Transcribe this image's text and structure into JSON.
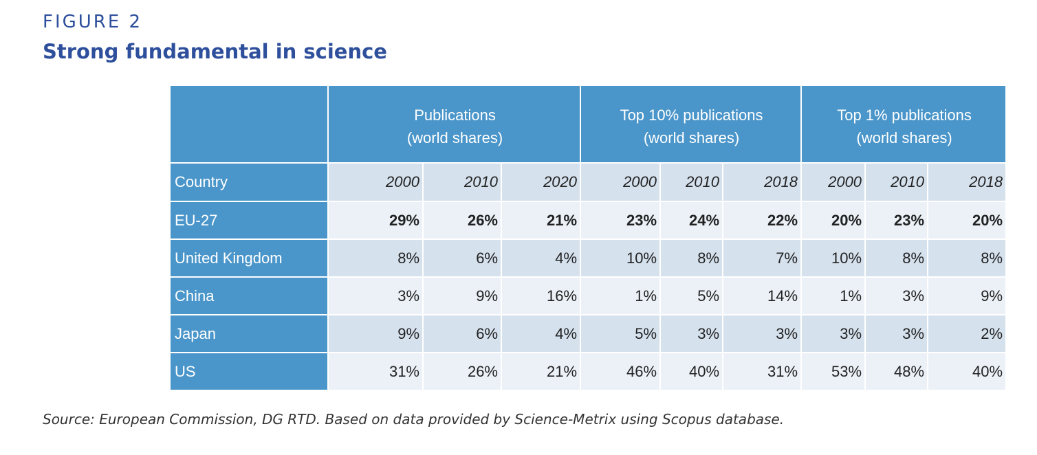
{
  "figure": {
    "label": "FIGURE 2",
    "title": "Strong fundamental in science"
  },
  "table": {
    "groups": [
      {
        "line1": "Publications",
        "line2": "(world shares)"
      },
      {
        "line1": "Top 10% publications",
        "line2": "(world shares)"
      },
      {
        "line1": "Top 1% publications",
        "line2": "(world shares)"
      }
    ],
    "country_header": "Country",
    "years": [
      "2000",
      "2010",
      "2020",
      "2000",
      "2010",
      "2018",
      "2000",
      "2010",
      "2018"
    ],
    "rows": [
      {
        "country": "EU-27",
        "values": [
          "29%",
          "26%",
          "21%",
          "23%",
          "24%",
          "22%",
          "20%",
          "23%",
          "20%"
        ]
      },
      {
        "country": "United Kingdom",
        "values": [
          "8%",
          "6%",
          "4%",
          "10%",
          "8%",
          "7%",
          "10%",
          "8%",
          "8%"
        ]
      },
      {
        "country": "China",
        "values": [
          "3%",
          "9%",
          "16%",
          "1%",
          "5%",
          "14%",
          "1%",
          "3%",
          "9%"
        ]
      },
      {
        "country": "Japan",
        "values": [
          "9%",
          "6%",
          "4%",
          "5%",
          "3%",
          "3%",
          "3%",
          "3%",
          "2%"
        ]
      },
      {
        "country": "US",
        "values": [
          "31%",
          "26%",
          "21%",
          "46%",
          "40%",
          "31%",
          "53%",
          "48%",
          "40%"
        ]
      }
    ]
  },
  "source": "Source: European Commission, DG RTD. Based on data provided by Science-Metrix using Scopus database.",
  "colors": {
    "title": "#2e4f9c",
    "header_blue": "#4a95c9",
    "row_dark": "#d5e1ed",
    "row_light": "#ebf1f7"
  }
}
